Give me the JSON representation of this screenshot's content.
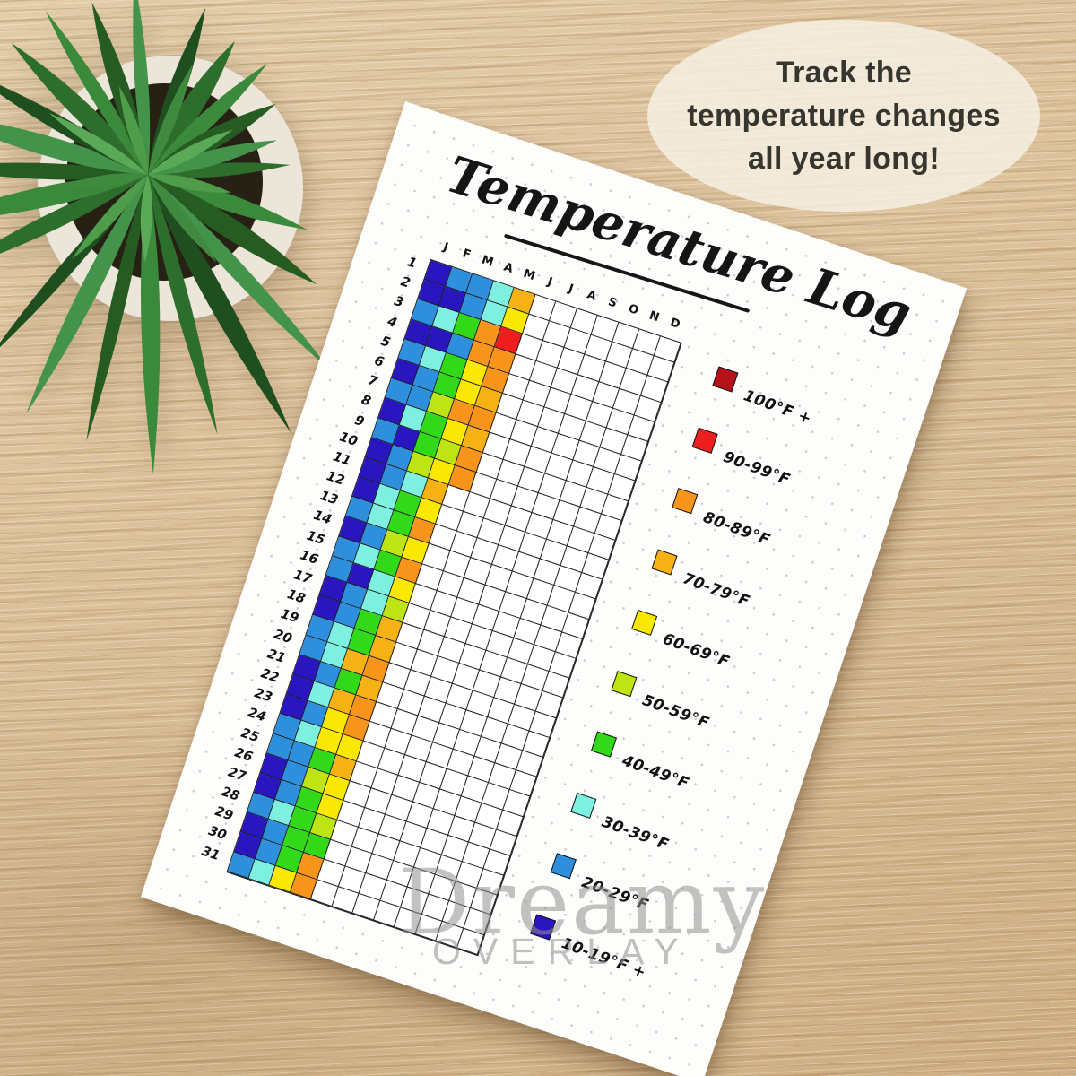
{
  "bubble": {
    "lines": [
      "Track the",
      "temperature changes",
      "all year long!"
    ]
  },
  "watermark": {
    "line1": "Dreamy",
    "line2": "OVERLAY"
  },
  "page": {
    "title": "Temperature Log",
    "months": [
      "J",
      "F",
      "M",
      "A",
      "M",
      "J",
      "J",
      "A",
      "S",
      "O",
      "N",
      "D"
    ],
    "days": [
      "1",
      "2",
      "3",
      "4",
      "5",
      "6",
      "7",
      "8",
      "9",
      "10",
      "11",
      "12",
      "13",
      "14",
      "15",
      "16",
      "17",
      "18",
      "19",
      "20",
      "21",
      "22",
      "23",
      "24",
      "25",
      "26",
      "27",
      "28",
      "29",
      "30",
      "31"
    ],
    "palette": {
      "100+": "#b5121b",
      "90-99": "#ef1e1e",
      "80-89": "#f7941b",
      "70-79": "#f6b214",
      "60-69": "#fae800",
      "50-59": "#bfe414",
      "40-49": "#31d918",
      "30-39": "#7ef0e0",
      "20-29": "#2e8fdd",
      "10-19": "#2a16bf"
    },
    "legend": [
      {
        "bucket": "100+",
        "label": "100°F +"
      },
      {
        "bucket": "90-99",
        "label": "90-99°F"
      },
      {
        "bucket": "80-89",
        "label": "80-89°F"
      },
      {
        "bucket": "70-79",
        "label": "70-79°F"
      },
      {
        "bucket": "60-69",
        "label": "60-69°F"
      },
      {
        "bucket": "50-59",
        "label": "50-59°F"
      },
      {
        "bucket": "40-49",
        "label": "40-49°F"
      },
      {
        "bucket": "30-39",
        "label": "30-39°F"
      },
      {
        "bucket": "20-29",
        "label": "20-29°F"
      },
      {
        "bucket": "10-19",
        "label": "10-19°F +"
      }
    ]
  },
  "chart_data": {
    "type": "heatmap",
    "title": "Temperature Log",
    "x_labels": [
      "J",
      "F",
      "M",
      "A",
      "M",
      "J",
      "J",
      "A",
      "S",
      "O",
      "N",
      "D"
    ],
    "y_labels": [
      1,
      2,
      3,
      4,
      5,
      6,
      7,
      8,
      9,
      10,
      11,
      12,
      13,
      14,
      15,
      16,
      17,
      18,
      19,
      20,
      21,
      22,
      23,
      24,
      25,
      26,
      27,
      28,
      29,
      30,
      31
    ],
    "value_units": "°F range bucket",
    "legend_position": "right",
    "cells": [
      [
        "10-19",
        "20-29",
        "20-29",
        "30-39",
        "70-79"
      ],
      [
        "10-19",
        "10-19",
        "20-29",
        "30-39",
        "60-69"
      ],
      [
        "20-29",
        "30-39",
        "40-49",
        "80-89",
        "90-99"
      ],
      [
        "10-19",
        "10-19",
        "20-29",
        "80-89",
        "80-89"
      ],
      [
        "20-29",
        "30-39",
        "40-49",
        "60-69",
        "80-89"
      ],
      [
        "10-19",
        "20-29",
        "40-49",
        "60-69",
        "70-79"
      ],
      [
        "20-29",
        "20-29",
        "50-59",
        "80-89",
        "80-89"
      ],
      [
        "10-19",
        "30-39",
        "40-49",
        "60-69",
        "70-79"
      ],
      [
        "20-29",
        "10-19",
        "40-49",
        "50-59",
        "80-89"
      ],
      [
        "10-19",
        "20-29",
        "50-59",
        "60-69",
        "80-89"
      ],
      [
        "10-19",
        "20-29",
        "30-39",
        "70-79"
      ],
      [
        "10-19",
        "30-39",
        "40-49",
        "60-69"
      ],
      [
        "20-29",
        "30-39",
        "40-49",
        "80-89"
      ],
      [
        "10-19",
        "20-29",
        "50-59",
        "60-69"
      ],
      [
        "20-29",
        "30-39",
        "40-49",
        "80-89"
      ],
      [
        "20-29",
        "10-19",
        "30-39",
        "60-69"
      ],
      [
        "10-19",
        "20-29",
        "30-39",
        "50-59"
      ],
      [
        "10-19",
        "20-29",
        "40-49",
        "70-79"
      ],
      [
        "20-29",
        "30-39",
        "40-49",
        "70-79"
      ],
      [
        "20-29",
        "30-39",
        "70-79",
        "80-89"
      ],
      [
        "10-19",
        "20-29",
        "40-49",
        "70-79"
      ],
      [
        "10-19",
        "30-39",
        "70-79",
        "80-89"
      ],
      [
        "10-19",
        "20-29",
        "60-69",
        "80-89"
      ],
      [
        "20-29",
        "30-39",
        "60-69",
        "60-69"
      ],
      [
        "20-29",
        "20-29",
        "40-49",
        "70-79"
      ],
      [
        "10-19",
        "20-29",
        "50-59",
        "60-69"
      ],
      [
        "10-19",
        "20-29",
        "40-49",
        "60-69"
      ],
      [
        "20-29",
        "30-39",
        "40-49",
        "50-59"
      ],
      [
        "10-19",
        "20-29",
        "40-49",
        "40-49"
      ],
      [
        "10-19",
        "20-29",
        "40-49",
        "80-89"
      ],
      [
        "20-29",
        "30-39",
        "60-69",
        "80-89"
      ]
    ]
  }
}
